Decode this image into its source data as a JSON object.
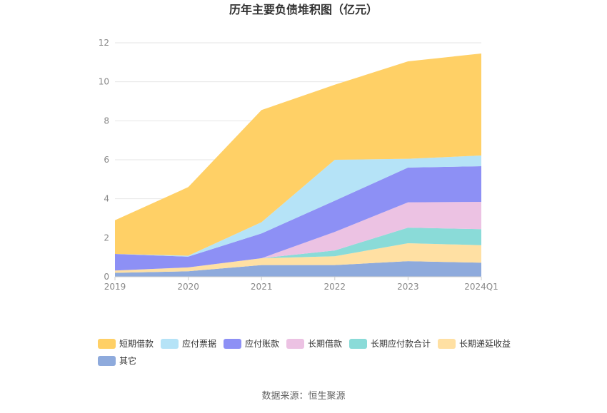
{
  "chart_data": {
    "type": "area",
    "stacked": true,
    "title": "历年主要负债堆积图（亿元）",
    "source": "数据来源：恒生聚源",
    "categories": [
      "2019",
      "2020",
      "2021",
      "2022",
      "2023",
      "2024Q1"
    ],
    "ylim": [
      0,
      12
    ],
    "yticks": [
      "0",
      "2",
      "4",
      "6",
      "8",
      "10",
      "12"
    ],
    "grid": true,
    "legend_position": "bottom",
    "series": [
      {
        "name": "其它",
        "color": "#8eaadc",
        "values": [
          0.2,
          0.28,
          0.6,
          0.6,
          0.8,
          0.72
        ]
      },
      {
        "name": "长期递延收益",
        "color": "#ffe0a3",
        "values": [
          0.12,
          0.2,
          0.35,
          0.45,
          0.92,
          0.9
        ]
      },
      {
        "name": "长期应付款合计",
        "color": "#8adbd8",
        "values": [
          0.0,
          0.0,
          0.0,
          0.3,
          0.8,
          0.82
        ]
      },
      {
        "name": "长期借款",
        "color": "#ecc2e3",
        "values": [
          0.0,
          0.0,
          0.0,
          0.95,
          1.3,
          1.4
        ]
      },
      {
        "name": "应付账款",
        "color": "#8d90f5",
        "values": [
          0.85,
          0.55,
          1.27,
          1.6,
          1.78,
          1.83
        ]
      },
      {
        "name": "应付票据",
        "color": "#b5e3f7",
        "values": [
          0.0,
          0.05,
          0.58,
          2.1,
          0.45,
          0.55
        ]
      },
      {
        "name": "短期借款",
        "color": "#ffd066",
        "values": [
          1.73,
          3.52,
          5.75,
          3.85,
          5.0,
          5.23
        ]
      }
    ],
    "legend_order": [
      "短期借款",
      "应付票据",
      "应付账款",
      "长期借款",
      "长期应付款合计",
      "长期递延收益",
      "其它"
    ]
  }
}
